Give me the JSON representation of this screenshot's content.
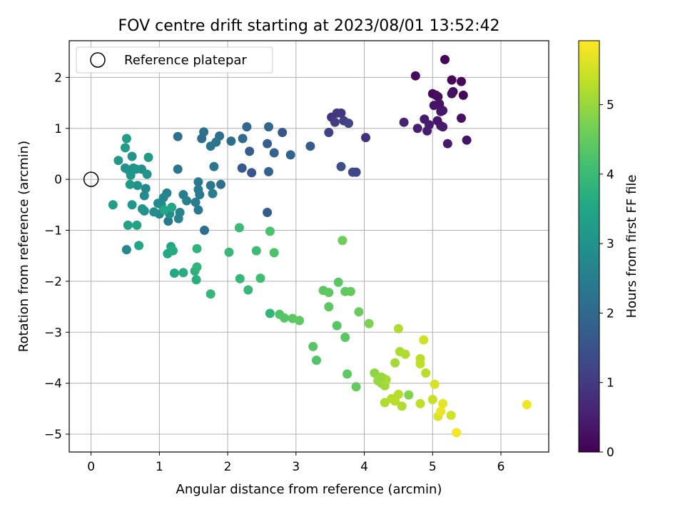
{
  "chart_data": {
    "type": "scatter",
    "title": "FOV centre drift starting at 2023/08/01 13:52:42",
    "xlabel": "Angular distance from reference (arcmin)",
    "ylabel": "Rotation from reference (arcmin)",
    "xlim": [
      -0.32,
      6.7
    ],
    "ylim": [
      -5.35,
      2.72
    ],
    "x_ticks": [
      0,
      1,
      2,
      3,
      4,
      5,
      6
    ],
    "x_tick_labels": [
      "0",
      "1",
      "2",
      "3",
      "4",
      "5",
      "6"
    ],
    "y_ticks": [
      -5,
      -4,
      -3,
      -2,
      -1,
      0,
      1,
      2
    ],
    "y_tick_labels": [
      "−5",
      "−4",
      "−3",
      "−2",
      "−1",
      "0",
      "1",
      "2"
    ],
    "grid": true,
    "legend": {
      "placement": "top-left",
      "entries": [
        "Reference platepar"
      ]
    },
    "reference_point": {
      "x": 0,
      "y": 0
    },
    "colorbar": {
      "label": "Hours from first FF file",
      "range": [
        0,
        5.92
      ],
      "colormap": "viridis",
      "ticks": [
        0,
        1,
        2,
        3,
        4,
        5
      ],
      "tick_labels": [
        "0",
        "1",
        "2",
        "3",
        "4",
        "5"
      ]
    },
    "series": [
      {
        "points": [
          [
            5.18,
            2.35,
            0.05
          ],
          [
            4.75,
            2.03,
            0.15
          ],
          [
            5.28,
            1.95,
            0.1
          ],
          [
            5.42,
            1.92,
            0.12
          ],
          [
            5.05,
            1.65,
            0.2
          ],
          [
            5.0,
            1.68,
            0.18
          ],
          [
            5.08,
            1.62,
            0.22
          ],
          [
            5.3,
            1.72,
            0.17
          ],
          [
            5.28,
            1.68,
            0.25
          ],
          [
            5.45,
            1.65,
            0.14
          ],
          [
            5.1,
            1.48,
            0.28
          ],
          [
            5.02,
            1.45,
            0.3
          ],
          [
            5.15,
            1.35,
            0.33
          ],
          [
            5.12,
            1.33,
            0.35
          ],
          [
            4.88,
            1.18,
            0.4
          ],
          [
            5.07,
            1.15,
            0.38
          ],
          [
            5.42,
            1.2,
            0.27
          ],
          [
            4.58,
            1.12,
            0.55
          ],
          [
            4.95,
            1.07,
            0.42
          ],
          [
            5.12,
            1.05,
            0.37
          ],
          [
            5.15,
            1.03,
            0.45
          ],
          [
            4.78,
            1.0,
            0.5
          ],
          [
            4.92,
            0.95,
            0.48
          ],
          [
            5.5,
            0.77,
            0.32
          ],
          [
            5.22,
            0.7,
            0.43
          ],
          [
            3.6,
            1.3,
            1.0
          ],
          [
            3.7,
            1.15,
            1.1
          ],
          [
            3.52,
            1.22,
            0.9
          ],
          [
            3.57,
            1.12,
            1.05
          ],
          [
            3.66,
            1.3,
            0.95
          ],
          [
            3.48,
            0.92,
            1.15
          ],
          [
            3.77,
            1.1,
            1.2
          ],
          [
            4.02,
            0.82,
            0.85
          ],
          [
            3.66,
            0.25,
            1.4
          ],
          [
            3.83,
            0.14,
            1.3
          ],
          [
            3.88,
            0.14,
            1.25
          ],
          [
            3.21,
            0.65,
            1.7
          ],
          [
            2.92,
            0.48,
            1.9
          ],
          [
            2.6,
            1.03,
            1.95
          ],
          [
            2.8,
            0.92,
            1.6
          ],
          [
            2.58,
            0.7,
            1.8
          ],
          [
            2.68,
            0.52,
            1.85
          ],
          [
            2.28,
            1.03,
            2.0
          ],
          [
            2.22,
            0.8,
            2.05
          ],
          [
            2.32,
            0.55,
            1.75
          ],
          [
            2.05,
            0.75,
            2.1
          ],
          [
            2.21,
            0.22,
            1.65
          ],
          [
            2.35,
            0.13,
            1.55
          ],
          [
            2.6,
            0.15,
            1.9
          ],
          [
            2.58,
            -0.65,
            1.75
          ],
          [
            1.65,
            0.93,
            2.2
          ],
          [
            1.88,
            0.85,
            2.15
          ],
          [
            1.83,
            0.73,
            2.25
          ],
          [
            1.75,
            0.65,
            2.3
          ],
          [
            1.62,
            0.8,
            2.1
          ],
          [
            1.27,
            0.84,
            2.2
          ],
          [
            1.27,
            0.2,
            2.3
          ],
          [
            1.8,
            0.25,
            2.35
          ],
          [
            1.57,
            -0.05,
            2.4
          ],
          [
            1.57,
            -0.2,
            2.45
          ],
          [
            1.75,
            -0.12,
            2.35
          ],
          [
            1.9,
            -0.1,
            2.2
          ],
          [
            1.78,
            -0.28,
            2.5
          ],
          [
            1.59,
            -0.3,
            2.4
          ],
          [
            1.35,
            -0.3,
            2.5
          ],
          [
            1.4,
            -0.42,
            2.55
          ],
          [
            1.53,
            -0.45,
            2.45
          ],
          [
            1.57,
            -0.6,
            2.4
          ],
          [
            1.66,
            -1.0,
            2.1
          ],
          [
            1.3,
            -0.65,
            2.6
          ],
          [
            1.28,
            -0.77,
            2.65
          ],
          [
            1.13,
            -0.82,
            2.4
          ],
          [
            1.11,
            -0.27,
            2.6
          ],
          [
            1.06,
            -0.36,
            2.7
          ],
          [
            1.03,
            -0.5,
            2.75
          ],
          [
            0.98,
            -0.47,
            2.8
          ],
          [
            1.15,
            -0.68,
            2.9
          ],
          [
            1.0,
            -0.68,
            2.7
          ],
          [
            0.92,
            -0.64,
            2.85
          ],
          [
            0.78,
            -0.62,
            2.95
          ],
          [
            0.75,
            -0.58,
            3.0
          ],
          [
            0.78,
            -0.32,
            2.8
          ],
          [
            0.8,
            -0.18,
            2.75
          ],
          [
            0.68,
            -0.12,
            3.0
          ],
          [
            0.74,
            0.2,
            2.9
          ],
          [
            0.82,
            0.1,
            3.05
          ],
          [
            0.62,
            0.22,
            3.1
          ],
          [
            0.66,
            0.2,
            3.05
          ],
          [
            0.5,
            0.22,
            3.0
          ],
          [
            0.55,
            0.18,
            2.95
          ],
          [
            0.58,
            0.08,
            3.1
          ],
          [
            0.4,
            0.37,
            3.15
          ],
          [
            0.6,
            0.45,
            3.05
          ],
          [
            0.84,
            0.43,
            3.2
          ],
          [
            0.5,
            0.62,
            3.25
          ],
          [
            0.52,
            0.8,
            3.3
          ],
          [
            0.57,
            -0.1,
            3.2
          ],
          [
            0.6,
            -0.5,
            3.1
          ],
          [
            0.32,
            -0.5,
            3.3
          ],
          [
            0.54,
            -0.9,
            3.4
          ],
          [
            0.67,
            -0.9,
            3.45
          ],
          [
            0.7,
            -1.3,
            3.5
          ],
          [
            0.52,
            -1.38,
            2.75
          ],
          [
            1.07,
            -0.6,
            3.55
          ],
          [
            1.18,
            -0.55,
            3.5
          ],
          [
            1.12,
            -1.46,
            3.55
          ],
          [
            1.17,
            -1.32,
            3.5
          ],
          [
            1.2,
            -1.4,
            3.6
          ],
          [
            1.22,
            -1.84,
            3.55
          ],
          [
            1.35,
            -1.83,
            3.65
          ],
          [
            1.55,
            -1.36,
            3.8
          ],
          [
            1.52,
            -1.8,
            3.75
          ],
          [
            1.55,
            -1.72,
            3.85
          ],
          [
            1.54,
            -1.97,
            3.7
          ],
          [
            1.75,
            -2.25,
            3.9
          ],
          [
            2.02,
            -1.43,
            3.95
          ],
          [
            2.17,
            -0.95,
            4.0
          ],
          [
            2.18,
            -1.95,
            3.9
          ],
          [
            2.3,
            -2.17,
            3.95
          ],
          [
            2.42,
            -1.4,
            4.05
          ],
          [
            2.48,
            -1.94,
            4.1
          ],
          [
            2.62,
            -1.02,
            4.2
          ],
          [
            2.68,
            -1.44,
            4.25
          ],
          [
            2.62,
            -2.63,
            3.85
          ],
          [
            2.76,
            -2.65,
            4.3
          ],
          [
            2.83,
            -2.72,
            4.35
          ],
          [
            2.95,
            -2.73,
            4.4
          ],
          [
            3.05,
            -2.77,
            4.45
          ],
          [
            3.25,
            -3.28,
            4.35
          ],
          [
            3.3,
            -3.55,
            4.3
          ],
          [
            3.4,
            -2.18,
            4.4
          ],
          [
            3.48,
            -2.22,
            4.45
          ],
          [
            3.48,
            -2.5,
            4.4
          ],
          [
            3.62,
            -2.02,
            4.4
          ],
          [
            3.6,
            -2.87,
            4.35
          ],
          [
            3.72,
            -2.2,
            4.45
          ],
          [
            3.8,
            -2.2,
            4.5
          ],
          [
            3.68,
            -1.2,
            4.6
          ],
          [
            3.72,
            -3.1,
            4.4
          ],
          [
            3.75,
            -3.82,
            4.45
          ],
          [
            3.88,
            -4.07,
            4.5
          ],
          [
            3.92,
            -2.6,
            4.55
          ],
          [
            4.07,
            -2.83,
            4.75
          ],
          [
            4.15,
            -3.8,
            4.9
          ],
          [
            4.2,
            -3.95,
            5.0
          ],
          [
            4.22,
            -3.92,
            5.05
          ],
          [
            4.25,
            -4.0,
            5.0
          ],
          [
            4.27,
            -3.9,
            5.1
          ],
          [
            4.3,
            -4.05,
            5.05
          ],
          [
            4.32,
            -3.93,
            5.15
          ],
          [
            4.25,
            -3.88,
            5.0
          ],
          [
            4.3,
            -4.38,
            5.2
          ],
          [
            4.4,
            -4.3,
            5.25
          ],
          [
            4.45,
            -4.35,
            5.3
          ],
          [
            4.5,
            -4.22,
            5.25
          ],
          [
            4.55,
            -4.45,
            5.2
          ],
          [
            4.45,
            -3.6,
            5.1
          ],
          [
            4.5,
            -2.93,
            5.2
          ],
          [
            4.52,
            -3.38,
            5.15
          ],
          [
            4.6,
            -3.43,
            5.2
          ],
          [
            4.65,
            -4.23,
            4.8
          ],
          [
            4.82,
            -3.52,
            5.3
          ],
          [
            4.82,
            -3.62,
            5.35
          ],
          [
            4.9,
            -3.8,
            5.3
          ],
          [
            4.87,
            -3.15,
            5.5
          ],
          [
            5.0,
            -4.32,
            5.4
          ],
          [
            5.03,
            -4.02,
            5.55
          ],
          [
            5.08,
            -4.65,
            5.6
          ],
          [
            5.15,
            -4.4,
            5.7
          ],
          [
            5.12,
            -4.55,
            5.75
          ],
          [
            5.27,
            -4.63,
            5.5
          ],
          [
            5.35,
            -4.97,
            5.85
          ],
          [
            4.82,
            -4.4,
            5.35
          ],
          [
            6.38,
            -4.42,
            5.8
          ]
        ]
      }
    ]
  }
}
